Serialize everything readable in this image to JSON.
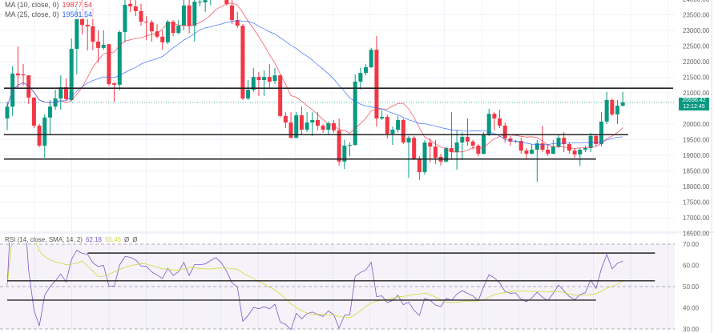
{
  "chart_data": {
    "type": "candlestick",
    "price_axis": {
      "ticks": [
        24000,
        23500,
        23000,
        22500,
        22000,
        21500,
        21000,
        20000,
        19500,
        19000,
        18500,
        18000,
        17500,
        17000,
        16500
      ],
      "range": [
        16500,
        24000
      ]
    },
    "rsi_axis": {
      "ticks": [
        70,
        60,
        50,
        40,
        30
      ],
      "range": [
        30,
        70
      ],
      "bands": [
        70,
        50,
        30
      ]
    },
    "candles": [
      [
        20180,
        20720,
        19800,
        20560
      ],
      [
        20560,
        21850,
        20260,
        21620
      ],
      [
        21620,
        22490,
        21150,
        21560
      ],
      [
        21590,
        21920,
        21230,
        21560
      ],
      [
        21560,
        21560,
        20640,
        20850
      ],
      [
        20850,
        20850,
        19870,
        19950
      ],
      [
        19950,
        20000,
        19260,
        19310
      ],
      [
        19310,
        20310,
        18920,
        20210
      ],
      [
        20210,
        20770,
        19670,
        20560
      ],
      [
        20560,
        21100,
        20460,
        20820
      ],
      [
        20820,
        21560,
        20460,
        21180
      ],
      [
        21180,
        21460,
        20740,
        20800
      ],
      [
        20770,
        22740,
        20720,
        22410
      ],
      [
        22410,
        23800,
        21590,
        23360
      ],
      [
        23380,
        23970,
        22870,
        23180
      ],
      [
        23180,
        23460,
        22360,
        23130
      ],
      [
        23130,
        23720,
        22360,
        22640
      ],
      [
        22640,
        23000,
        21970,
        22440
      ],
      [
        22440,
        23000,
        22380,
        22540
      ],
      [
        22560,
        22560,
        21210,
        21280
      ],
      [
        21310,
        21330,
        20720,
        21260
      ],
      [
        21260,
        23000,
        21080,
        22950
      ],
      [
        22950,
        24100,
        22620,
        23820
      ],
      [
        23850,
        24000,
        23590,
        23770
      ],
      [
        23770,
        23970,
        23460,
        23620
      ],
      [
        23620,
        23850,
        23150,
        23280
      ],
      [
        23280,
        23460,
        22690,
        23260
      ],
      [
        23260,
        23330,
        22640,
        22970
      ],
      [
        22970,
        23200,
        22740,
        22800
      ],
      [
        22800,
        23000,
        22380,
        22620
      ],
      [
        22620,
        23330,
        22560,
        23280
      ],
      [
        23280,
        23330,
        22820,
        22920
      ],
      [
        22920,
        23330,
        22870,
        23150
      ],
      [
        23150,
        24100,
        23000,
        23800
      ],
      [
        23800,
        24100,
        22900,
        23150
      ],
      [
        23150,
        24100,
        22640,
        23920
      ],
      [
        23920,
        24000,
        23770,
        23920
      ],
      [
        23900,
        24200,
        23590,
        23970
      ],
      [
        24000,
        24300,
        23800,
        24200
      ],
      [
        24200,
        24500,
        24000,
        24400
      ],
      [
        24400,
        24500,
        24100,
        24200
      ],
      [
        24100,
        24300,
        23800,
        23850
      ],
      [
        23800,
        23970,
        23200,
        23330
      ],
      [
        23330,
        23590,
        23080,
        23150
      ],
      [
        23150,
        23200,
        20770,
        20820
      ],
      [
        20820,
        21410,
        20770,
        21100
      ],
      [
        21100,
        21800,
        21030,
        21510
      ],
      [
        21510,
        21670,
        20900,
        21410
      ],
      [
        21410,
        21720,
        20900,
        21510
      ],
      [
        21510,
        21920,
        21150,
        21360
      ],
      [
        21380,
        21800,
        21280,
        21560
      ],
      [
        21560,
        21590,
        20210,
        20260
      ],
      [
        20260,
        20380,
        19870,
        20050
      ],
      [
        20050,
        20380,
        19540,
        19560
      ],
      [
        19560,
        20380,
        19540,
        20280
      ],
      [
        20280,
        20560,
        19670,
        19820
      ],
      [
        19820,
        20380,
        19740,
        20050
      ],
      [
        20050,
        20380,
        19620,
        20130
      ],
      [
        20130,
        20380,
        19800,
        19950
      ],
      [
        19950,
        20000,
        19720,
        19820
      ],
      [
        19820,
        20080,
        19670,
        20030
      ],
      [
        20030,
        20130,
        19720,
        19800
      ],
      [
        19800,
        20180,
        18670,
        18800
      ],
      [
        18800,
        19490,
        18560,
        19310
      ],
      [
        19310,
        19410,
        18970,
        19330
      ],
      [
        19330,
        21590,
        19310,
        21360
      ],
      [
        21360,
        21800,
        21100,
        21640
      ],
      [
        21640,
        21920,
        21560,
        21820
      ],
      [
        21820,
        22440,
        21800,
        22380
      ],
      [
        22380,
        22820,
        19920,
        20180
      ],
      [
        20180,
        20440,
        20130,
        20230
      ],
      [
        20230,
        20310,
        19540,
        19690
      ],
      [
        19690,
        19920,
        19330,
        19820
      ],
      [
        19820,
        20260,
        19740,
        20130
      ],
      [
        20130,
        20180,
        19360,
        19410
      ],
      [
        19410,
        19620,
        18280,
        19560
      ],
      [
        19560,
        19620,
        18850,
        18900
      ],
      [
        18900,
        18970,
        18210,
        18460
      ],
      [
        18460,
        19490,
        18380,
        19410
      ],
      [
        19410,
        19540,
        18770,
        19280
      ],
      [
        19280,
        19490,
        18720,
        18920
      ],
      [
        18950,
        19050,
        18670,
        18800
      ],
      [
        18800,
        19280,
        18770,
        19230
      ],
      [
        19230,
        20380,
        18850,
        19100
      ],
      [
        19100,
        19800,
        18540,
        19410
      ],
      [
        19410,
        19740,
        18850,
        19590
      ],
      [
        19590,
        20180,
        19310,
        19440
      ],
      [
        19440,
        19490,
        19180,
        19310
      ],
      [
        19310,
        19360,
        18970,
        19050
      ],
      [
        19050,
        19740,
        19030,
        19670
      ],
      [
        19670,
        20490,
        19620,
        20330
      ],
      [
        20330,
        20380,
        19800,
        20180
      ],
      [
        20180,
        20460,
        19870,
        19950
      ],
      [
        19950,
        20050,
        19410,
        19540
      ],
      [
        19540,
        19620,
        19310,
        19440
      ],
      [
        19440,
        19490,
        19410,
        19460
      ],
      [
        19460,
        19560,
        19050,
        19150
      ],
      [
        19150,
        19230,
        18900,
        19050
      ],
      [
        19050,
        19360,
        19030,
        19180
      ],
      [
        19180,
        19490,
        18150,
        19380
      ],
      [
        19380,
        19950,
        19100,
        19180
      ],
      [
        19180,
        19360,
        18970,
        19050
      ],
      [
        19050,
        19490,
        19030,
        19280
      ],
      [
        19280,
        19670,
        19230,
        19560
      ],
      [
        19560,
        19740,
        19100,
        19360
      ],
      [
        19360,
        19410,
        19050,
        19150
      ],
      [
        19150,
        19230,
        18920,
        19030
      ],
      [
        19030,
        19230,
        18670,
        19180
      ],
      [
        19180,
        19310,
        19100,
        19230
      ],
      [
        19230,
        19720,
        19100,
        19620
      ],
      [
        19620,
        19670,
        19280,
        19360
      ],
      [
        19360,
        20380,
        19280,
        20080
      ],
      [
        20080,
        21030,
        20000,
        20770
      ],
      [
        20770,
        20820,
        20260,
        20310
      ],
      [
        20310,
        20770,
        20000,
        20590
      ],
      [
        20590,
        21030,
        20560,
        20696.42
      ]
    ],
    "horizontal_levels": [
      {
        "price": 21150,
        "from_bar": 0,
        "to_bar": 125
      },
      {
        "price": 19660,
        "from_bar": 0,
        "to_bar": 116
      },
      {
        "price": 18880,
        "from_bar": 0,
        "to_bar": 110
      }
    ],
    "rsi_levels": [
      {
        "value": 65.8,
        "from_bar": 15,
        "to_bar": 121
      },
      {
        "value": 52.7,
        "from_bar": 0,
        "to_bar": 121
      },
      {
        "value": 43.6,
        "from_bar": 0,
        "to_bar": 110
      }
    ],
    "ma_periods": {
      "fast": 10,
      "slow": 25
    },
    "rsi_period": 14,
    "rsi_sma_period": 14
  },
  "legend": {
    "ma10_label": "MA (10, close, 0)",
    "ma10_value": "19877.54",
    "ma25_label": "MA (25, close, 0)",
    "ma25_value": "19581.54",
    "rsi_label": "RSI (14, close, SMA, 14, 2)",
    "rsi_value": "62.18",
    "rsi_sma_value": "50.45",
    "extra1": "Ø",
    "extra2": "Ø"
  },
  "price_label": {
    "price": "20696.42",
    "countdown": "12:12:45"
  },
  "colors": {
    "up": "#089981",
    "down": "#f23645",
    "ma10": "#f23645",
    "ma25": "#2962ff",
    "rsi": "#7e57c2",
    "rsi_sma": "#d4d93a",
    "level": "#222222"
  }
}
